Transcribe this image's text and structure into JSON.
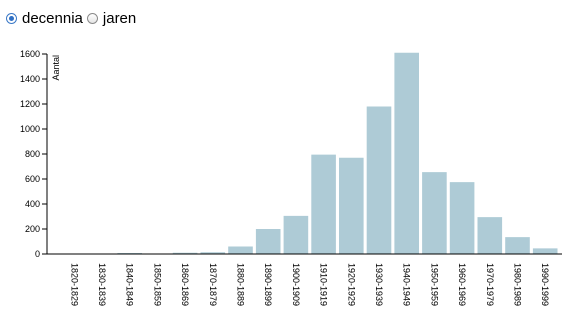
{
  "controls": {
    "options": [
      {
        "label": "decennia",
        "selected": true
      },
      {
        "label": "jaren",
        "selected": false
      }
    ]
  },
  "chart_data": {
    "type": "bar",
    "title": "",
    "xlabel": "",
    "ylabel": "Aantal",
    "ylim": [
      0,
      1600
    ],
    "yticks": [
      0,
      200,
      400,
      600,
      800,
      1000,
      1200,
      1400,
      1600
    ],
    "categories": [
      "1820-1829",
      "1830-1839",
      "1840-1849",
      "1850-1859",
      "1860-1869",
      "1870-1879",
      "1880-1889",
      "1890-1899",
      "1900-1909",
      "1910-1919",
      "1920-1929",
      "1930-1939",
      "1940-1949",
      "1950-1959",
      "1960-1969",
      "1970-1979",
      "1980-1989",
      "1990-1999"
    ],
    "values": [
      2,
      0,
      8,
      2,
      10,
      14,
      60,
      200,
      305,
      795,
      770,
      1180,
      1610,
      655,
      575,
      295,
      135,
      45
    ],
    "bar_color": "#aecbd6"
  }
}
